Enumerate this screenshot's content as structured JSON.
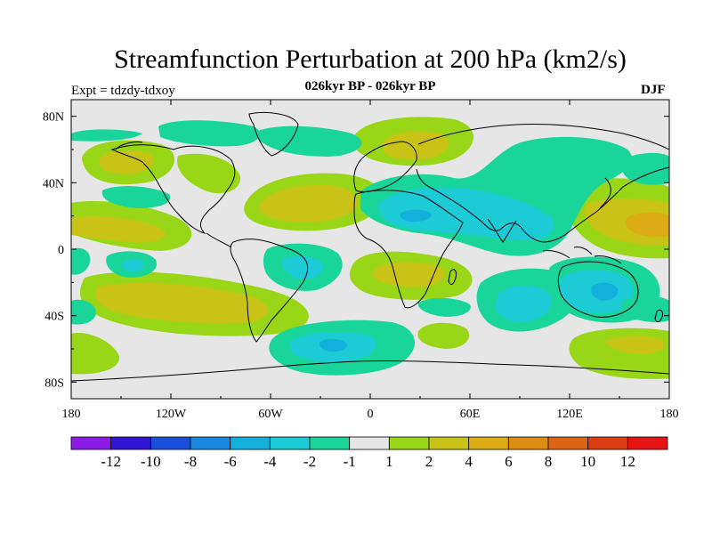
{
  "title": "Streamfunction Perturbation at 200 hPa (km2/s)",
  "subtitle": "026kyr BP - 026kyr BP",
  "experiment_label": "Expt = tdzdy-tdxoy",
  "season": "DJF",
  "map": {
    "projection": "cylindrical-equidistant",
    "lon_range": [
      -180,
      180
    ],
    "lat_range": [
      -90,
      90
    ],
    "x_tick_labels": [
      "180",
      "120W",
      "60W",
      "0",
      "60E",
      "120E",
      "180"
    ],
    "y_tick_labels": [
      "80N",
      "40N",
      "0",
      "40S",
      "80S"
    ],
    "background_color": "#e6e6e6"
  },
  "colorbar": {
    "colors": [
      "#8c1ae6",
      "#3315d4",
      "#1a50d9",
      "#1a8ae0",
      "#14b0dc",
      "#1ccbd6",
      "#1ad59a",
      "#e6e6e6",
      "#99d617",
      "#c9c318",
      "#dcab15",
      "#dd8d14",
      "#dc6414",
      "#dd3d12",
      "#e61414"
    ],
    "tick_labels": [
      "-12",
      "-10",
      "-8",
      "-6",
      "-4",
      "-2",
      "-1",
      "1",
      "2",
      "4",
      "6",
      "8",
      "10",
      "12"
    ]
  },
  "contour_features": [
    {
      "name": "n-pacific-positive",
      "lon": -150,
      "lat": 55,
      "rx": 22,
      "ry": 8,
      "level": "2"
    },
    {
      "name": "greenland-negative",
      "lon": -60,
      "lat": 72,
      "rx": 18,
      "ry": 5,
      "level": "-1"
    },
    {
      "name": "n-atlantic-positive",
      "lon": -15,
      "lat": 32,
      "rx": 25,
      "ry": 9,
      "level": "2"
    },
    {
      "name": "scandinavia-positive",
      "lon": 20,
      "lat": 65,
      "rx": 22,
      "ry": 8,
      "level": "2"
    },
    {
      "name": "arabia-negative",
      "lon": 45,
      "lat": 20,
      "rx": 18,
      "ry": 6,
      "level": "-2"
    },
    {
      "name": "nw-pacific-positive",
      "lon": 165,
      "lat": 15,
      "rx": 22,
      "ry": 10,
      "level": "4"
    },
    {
      "name": "australia-negative",
      "lon": 140,
      "lat": -25,
      "rx": 20,
      "ry": 12,
      "level": "-2"
    },
    {
      "name": "s-indian-negative",
      "lon": 90,
      "lat": -35,
      "rx": 18,
      "ry": 9,
      "level": "-2"
    },
    {
      "name": "s-pacific-positive",
      "lon": -145,
      "lat": -30,
      "rx": 35,
      "ry": 9,
      "level": "2"
    },
    {
      "name": "s-atlantic-negative",
      "lon": -35,
      "lat": -55,
      "rx": 25,
      "ry": 8,
      "level": "-2"
    }
  ]
}
